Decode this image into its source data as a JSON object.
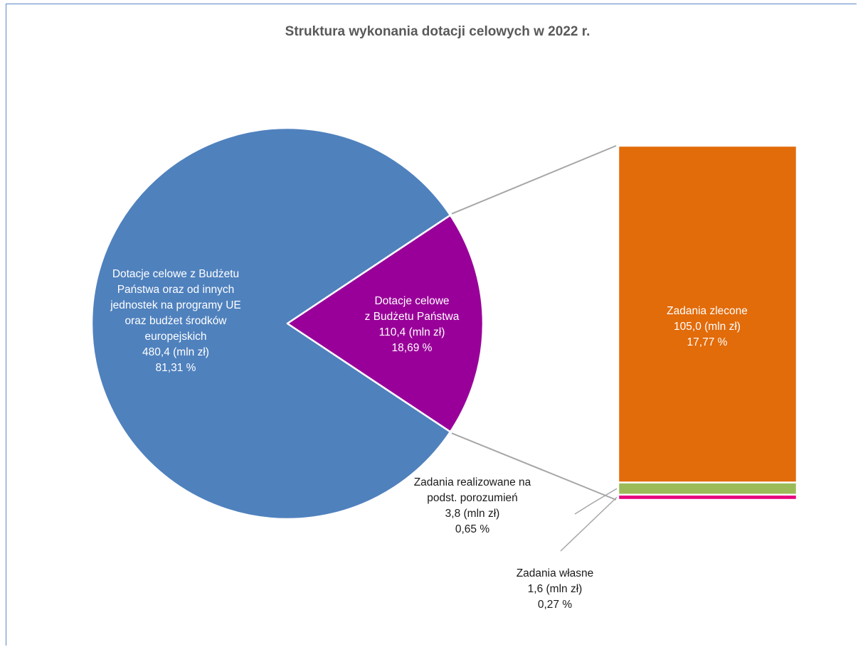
{
  "chart_data": {
    "type": "pie",
    "subtype": "bar-of-pie",
    "title": "Struktura wykonania dotacji celowych w 2022 r.",
    "pie": [
      {
        "label_lines": [
          "Dotacje celowe  z Budżetu",
          "Państwa oraz  od innych",
          "jednostek na programy UE",
          "oraz budżet środków",
          "europejskich"
        ],
        "value": 480.4,
        "value_text": "480,4 (mln zł)",
        "percent": 81.31,
        "percent_text": "81,31 %",
        "color": "#4f81bd"
      },
      {
        "label_lines": [
          "Dotacje celowe",
          "z Budżetu Państwa"
        ],
        "value": 110.4,
        "value_text": "110,4  (mln zł)",
        "percent": 18.69,
        "percent_text": "18,69 %",
        "color": "#990099"
      }
    ],
    "bar_breakdown": [
      {
        "label_lines": [
          "Zadania zlecone"
        ],
        "value": 105.0,
        "value_text": "105,0 (mln zł)",
        "percent": 17.77,
        "percent_text": "17,77 %",
        "color": "#e26b0a"
      },
      {
        "label_lines": [
          "Zadania realizowane na",
          "podst. porozumień"
        ],
        "value": 3.8,
        "value_text": "3,8 (mln zł)",
        "percent": 0.65,
        "percent_text": "0,65 %",
        "color": "#9bbb59"
      },
      {
        "label_lines": [
          "Zadania własne"
        ],
        "value": 1.6,
        "value_text": "1,6 (mln zł)",
        "percent": 0.27,
        "percent_text": "0,27 %",
        "color": "#e6007e"
      }
    ]
  }
}
